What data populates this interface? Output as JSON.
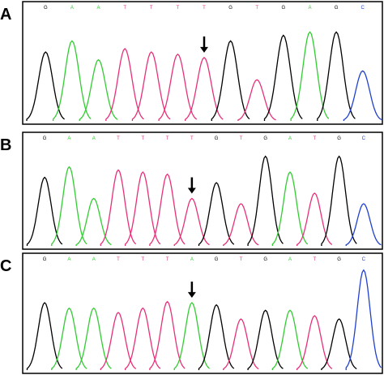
{
  "base_colors": {
    "G": "#000000",
    "A": "#33cc33",
    "T": "#e8307a",
    "C": "#2040d0"
  },
  "panels": [
    {
      "label": "A",
      "bases": [
        "G",
        "A",
        "A",
        "T",
        "T",
        "T",
        "T",
        "G",
        "T",
        "G",
        "A",
        "G",
        "C"
      ],
      "heights": [
        62,
        72,
        55,
        65,
        62,
        60,
        57,
        72,
        37,
        77,
        80,
        80,
        45
      ],
      "arrow_index": 6
    },
    {
      "label": "B",
      "bases": [
        "G",
        "A",
        "A",
        "T",
        "T",
        "T",
        "T",
        "G",
        "T",
        "G",
        "A",
        "T",
        "G",
        "C"
      ],
      "heights": [
        65,
        75,
        45,
        72,
        70,
        68,
        45,
        60,
        40,
        85,
        70,
        50,
        85,
        40
      ],
      "arrow_index": 6
    },
    {
      "label": "C",
      "bases": [
        "G",
        "A",
        "A",
        "T",
        "T",
        "T",
        "A",
        "G",
        "T",
        "G",
        "A",
        "T",
        "G",
        "C"
      ],
      "heights": [
        62,
        57,
        57,
        53,
        57,
        63,
        62,
        60,
        47,
        55,
        55,
        50,
        47,
        92
      ],
      "arrow_index": 6
    }
  ]
}
